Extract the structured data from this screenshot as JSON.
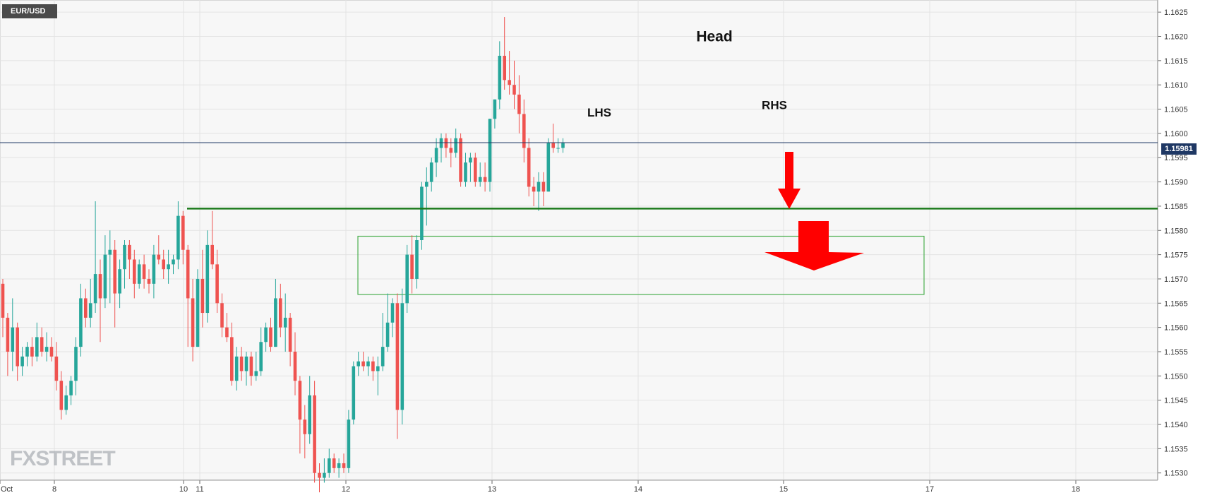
{
  "symbol": "EUR/USD",
  "current_price": "1.15981",
  "watermark": "FXSTREET",
  "colors": {
    "up": "#26a69a",
    "down": "#ef5350",
    "support": "#1b7a1b",
    "zone": "#4caf50",
    "arrow": "#ff0000",
    "price_line": "#1f3864"
  },
  "chart_data": {
    "type": "candlestick",
    "title": "",
    "ylim": [
      1.15285,
      1.16275
    ],
    "xlim": [
      0,
      1640
    ],
    "x_ticks": [
      {
        "label": "Oct",
        "pos": 0
      },
      {
        "label": "8",
        "pos": 77
      },
      {
        "label": "10",
        "pos": 260
      },
      {
        "label": "11",
        "pos": 283
      },
      {
        "label": "12",
        "pos": 490
      },
      {
        "label": "13",
        "pos": 697
      },
      {
        "label": "14",
        "pos": 904
      },
      {
        "label": "15",
        "pos": 1110
      },
      {
        "label": "17",
        "pos": 1317
      },
      {
        "label": "18",
        "pos": 1524
      }
    ],
    "y_ticks": [
      "1.1530",
      "1.1535",
      "1.1540",
      "1.1545",
      "1.1550",
      "1.1555",
      "1.1560",
      "1.1565",
      "1.1570",
      "1.1575",
      "1.1580",
      "1.1585",
      "1.1590",
      "1.1595",
      "1.1600",
      "1.1605",
      "1.1610",
      "1.1615",
      "1.1620",
      "1.1625"
    ],
    "grid": true,
    "series": [
      {
        "candles": [
          [
            1.1569,
            1.157,
            1.1558,
            1.1562
          ],
          [
            1.1562,
            1.1563,
            1.155,
            1.1555
          ],
          [
            1.1555,
            1.1566,
            1.1551,
            1.156
          ],
          [
            1.156,
            1.1561,
            1.1549,
            1.1552
          ],
          [
            1.1552,
            1.1556,
            1.155,
            1.1554
          ],
          [
            1.1554,
            1.1557,
            1.1552,
            1.1556
          ],
          [
            1.1556,
            1.1558,
            1.1552,
            1.1554
          ],
          [
            1.1554,
            1.1561,
            1.1553,
            1.1558
          ],
          [
            1.1558,
            1.156,
            1.1554,
            1.1555
          ],
          [
            1.1555,
            1.1559,
            1.1553,
            1.1556
          ],
          [
            1.1556,
            1.1558,
            1.1553,
            1.1554
          ],
          [
            1.1554,
            1.1557,
            1.1547,
            1.1549
          ],
          [
            1.1549,
            1.1551,
            1.1541,
            1.1543
          ],
          [
            1.1543,
            1.1548,
            1.1542,
            1.1546
          ],
          [
            1.1546,
            1.155,
            1.1544,
            1.1549
          ],
          [
            1.1549,
            1.1558,
            1.1546,
            1.1556
          ],
          [
            1.1556,
            1.1569,
            1.1554,
            1.1566
          ],
          [
            1.1566,
            1.1568,
            1.156,
            1.1562
          ],
          [
            1.1562,
            1.157,
            1.156,
            1.1565
          ],
          [
            1.1565,
            1.1586,
            1.1563,
            1.1571
          ],
          [
            1.1571,
            1.1574,
            1.1557,
            1.1566
          ],
          [
            1.1566,
            1.1579,
            1.1564,
            1.1575
          ],
          [
            1.1575,
            1.158,
            1.1565,
            1.1576
          ],
          [
            1.1576,
            1.1578,
            1.156,
            1.1567
          ],
          [
            1.1567,
            1.1574,
            1.1564,
            1.1572
          ],
          [
            1.1572,
            1.1578,
            1.1568,
            1.1577
          ],
          [
            1.1577,
            1.1578,
            1.157,
            1.1574
          ],
          [
            1.1574,
            1.1576,
            1.1566,
            1.1569
          ],
          [
            1.1569,
            1.1574,
            1.1568,
            1.1573
          ],
          [
            1.1573,
            1.1575,
            1.1568,
            1.157
          ],
          [
            1.157,
            1.1572,
            1.1567,
            1.1569
          ],
          [
            1.1569,
            1.1577,
            1.1566,
            1.1575
          ],
          [
            1.1575,
            1.1579,
            1.1573,
            1.1574
          ],
          [
            1.1574,
            1.1576,
            1.157,
            1.1572
          ],
          [
            1.1572,
            1.1576,
            1.1569,
            1.1573
          ],
          [
            1.1573,
            1.1575,
            1.1571,
            1.1574
          ],
          [
            1.1574,
            1.1586,
            1.1572,
            1.1583
          ],
          [
            1.1583,
            1.1584,
            1.1573,
            1.1576
          ],
          [
            1.1576,
            1.1577,
            1.1556,
            1.1566
          ],
          [
            1.1566,
            1.157,
            1.1553,
            1.1556
          ],
          [
            1.1556,
            1.1572,
            1.1556,
            1.157
          ],
          [
            1.157,
            1.1576,
            1.156,
            1.1563
          ],
          [
            1.1563,
            1.158,
            1.1561,
            1.1577
          ],
          [
            1.1577,
            1.1584,
            1.1572,
            1.1573
          ],
          [
            1.1573,
            1.1576,
            1.1563,
            1.1565
          ],
          [
            1.1565,
            1.1567,
            1.1558,
            1.156
          ],
          [
            1.156,
            1.1563,
            1.1557,
            1.1558
          ],
          [
            1.1558,
            1.1561,
            1.1548,
            1.1549
          ],
          [
            1.1549,
            1.1556,
            1.1547,
            1.1554
          ],
          [
            1.1554,
            1.1556,
            1.1549,
            1.1551
          ],
          [
            1.1551,
            1.1555,
            1.1548,
            1.1554
          ],
          [
            1.1554,
            1.1555,
            1.1548,
            1.155
          ],
          [
            1.155,
            1.1555,
            1.1549,
            1.1551
          ],
          [
            1.1551,
            1.156,
            1.155,
            1.1557
          ],
          [
            1.1557,
            1.1561,
            1.1555,
            1.156
          ],
          [
            1.156,
            1.1562,
            1.1555,
            1.1556
          ],
          [
            1.1556,
            1.157,
            1.1556,
            1.1566
          ],
          [
            1.1566,
            1.1569,
            1.1558,
            1.156
          ],
          [
            1.156,
            1.1567,
            1.1555,
            1.1562
          ],
          [
            1.1562,
            1.1563,
            1.1552,
            1.1555
          ],
          [
            1.1555,
            1.1559,
            1.1546,
            1.1549
          ],
          [
            1.1549,
            1.155,
            1.1534,
            1.1541
          ],
          [
            1.1541,
            1.1544,
            1.1533,
            1.1538
          ],
          [
            1.1538,
            1.155,
            1.1536,
            1.1546
          ],
          [
            1.1546,
            1.1549,
            1.1528,
            1.153
          ],
          [
            1.153,
            1.1532,
            1.1526,
            1.1529
          ],
          [
            1.1529,
            1.1533,
            1.1528,
            1.153
          ],
          [
            1.153,
            1.1535,
            1.1529,
            1.1533
          ],
          [
            1.1533,
            1.1534,
            1.153,
            1.1531
          ],
          [
            1.1531,
            1.1533,
            1.1529,
            1.1532
          ],
          [
            1.1532,
            1.1534,
            1.153,
            1.1531
          ],
          [
            1.1531,
            1.1543,
            1.153,
            1.1541
          ],
          [
            1.1541,
            1.1553,
            1.154,
            1.1552
          ],
          [
            1.1552,
            1.1555,
            1.155,
            1.1553
          ],
          [
            1.1553,
            1.1555,
            1.1551,
            1.1552
          ],
          [
            1.1552,
            1.1554,
            1.155,
            1.1553
          ],
          [
            1.1553,
            1.1554,
            1.1549,
            1.1551
          ],
          [
            1.1551,
            1.1554,
            1.1546,
            1.1552
          ],
          [
            1.1552,
            1.1563,
            1.1551,
            1.1556
          ],
          [
            1.1556,
            1.1567,
            1.1555,
            1.1561
          ],
          [
            1.1561,
            1.1566,
            1.1558,
            1.1565
          ],
          [
            1.1565,
            1.1567,
            1.1537,
            1.1543
          ],
          [
            1.1543,
            1.1568,
            1.154,
            1.1565
          ],
          [
            1.1565,
            1.1577,
            1.1563,
            1.1575
          ],
          [
            1.1575,
            1.1579,
            1.1567,
            1.157
          ],
          [
            1.157,
            1.1579,
            1.1568,
            1.1578
          ],
          [
            1.1578,
            1.159,
            1.1576,
            1.1589
          ],
          [
            1.1589,
            1.1593,
            1.1581,
            1.159
          ],
          [
            1.159,
            1.1595,
            1.1588,
            1.1594
          ],
          [
            1.1594,
            1.1599,
            1.1591,
            1.1597
          ],
          [
            1.1597,
            1.16,
            1.1594,
            1.1599
          ],
          [
            1.1599,
            1.16,
            1.1595,
            1.1597
          ],
          [
            1.1597,
            1.1599,
            1.1593,
            1.1596
          ],
          [
            1.1596,
            1.1601,
            1.1595,
            1.1599
          ],
          [
            1.1599,
            1.16,
            1.1589,
            1.159
          ],
          [
            1.159,
            1.1596,
            1.1589,
            1.1594
          ],
          [
            1.1594,
            1.1596,
            1.159,
            1.1595
          ],
          [
            1.1595,
            1.1596,
            1.1589,
            1.159
          ],
          [
            1.159,
            1.1594,
            1.1589,
            1.1591
          ],
          [
            1.1591,
            1.1594,
            1.1588,
            1.159
          ],
          [
            1.159,
            1.1603,
            1.1588,
            1.1603
          ],
          [
            1.1603,
            1.1607,
            1.1601,
            1.1607
          ],
          [
            1.1607,
            1.1619,
            1.1605,
            1.1616
          ],
          [
            1.1616,
            1.1624,
            1.1609,
            1.1611
          ],
          [
            1.1611,
            1.1617,
            1.1608,
            1.161
          ],
          [
            1.161,
            1.1615,
            1.1605,
            1.1608
          ],
          [
            1.1608,
            1.1612,
            1.16,
            1.1604
          ],
          [
            1.1604,
            1.1607,
            1.1594,
            1.1597
          ],
          [
            1.1597,
            1.1599,
            1.1587,
            1.1589
          ],
          [
            1.1589,
            1.1591,
            1.1585,
            1.1588
          ],
          [
            1.1588,
            1.1592,
            1.1584,
            1.159
          ],
          [
            1.159,
            1.1592,
            1.1585,
            1.1588
          ],
          [
            1.1588,
            1.1599,
            1.1588,
            1.1598
          ],
          [
            1.1598,
            1.1602,
            1.1596,
            1.1597
          ],
          [
            1.1597,
            1.1599,
            1.1596,
            1.1597
          ],
          [
            1.1597,
            1.1599,
            1.1596,
            1.1598
          ]
        ]
      }
    ],
    "annotations": [
      {
        "text": "Head",
        "x": 1012,
        "y": 1.1619
      },
      {
        "text": "LHS",
        "x": 849,
        "y": 1.16035
      },
      {
        "text": "RHS",
        "x": 1097,
        "y": 1.1605
      }
    ],
    "support_line": {
      "y": 1.15845,
      "x_start": 265,
      "x_end": 1640
    },
    "zone": {
      "x_start": 507,
      "x_end": 1309,
      "y_top": 1.15788,
      "y_bottom": 1.15668
    },
    "price_line": {
      "y": 1.15981
    }
  }
}
